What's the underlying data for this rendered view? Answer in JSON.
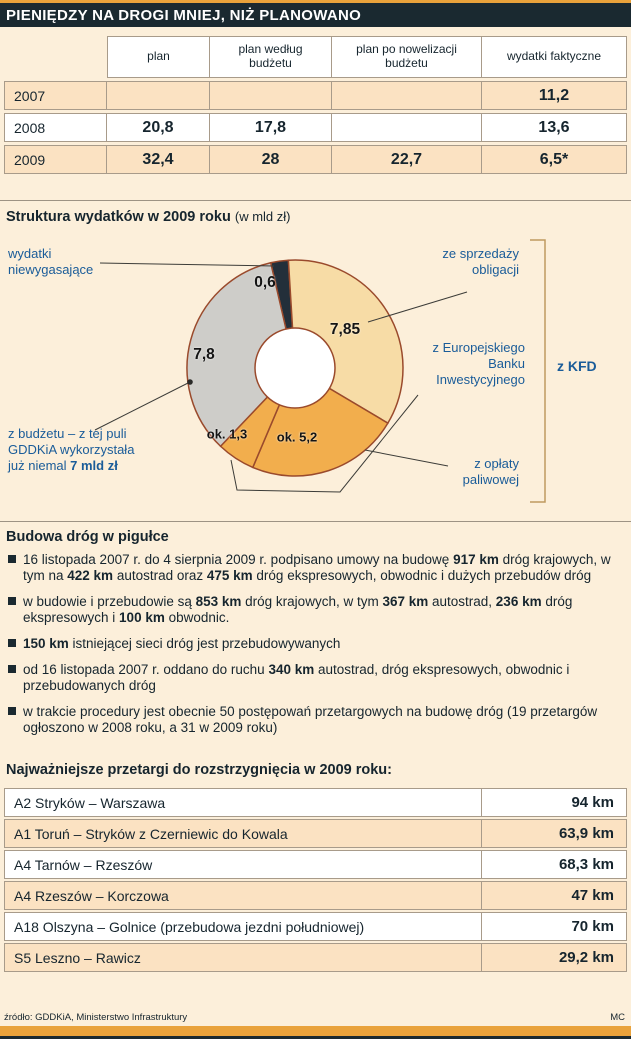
{
  "header": {
    "title": "PIENIĘDZY NA DROGI MNIEJ, NIŻ PLANOWANO"
  },
  "colors": {
    "accent_orange": "#e9a23b",
    "header_dark": "#1a2930",
    "label_blue": "#1a5c99",
    "row_peach": "#fbe2c2",
    "pie_outline": "#9a4a2c"
  },
  "chart_data": [
    {
      "type": "table",
      "title": "",
      "columns": [
        "",
        "plan",
        "plan według budżetu",
        "plan po nowelizacji budżetu",
        "wydatki faktyczne"
      ],
      "rows": [
        [
          "2007",
          "",
          "",
          "",
          "11,2"
        ],
        [
          "2008",
          "20,8",
          "17,8",
          "",
          "13,6"
        ],
        [
          "2009",
          "32,4",
          "28",
          "22,7",
          "6,5*"
        ]
      ]
    },
    {
      "type": "pie",
      "title": "Struktura wydatków w 2009 roku",
      "unit_note": "(w mld zł)",
      "donut": true,
      "start_angle_deg": -13,
      "outline_color": "#9a4a2c",
      "segments": [
        {
          "label": "wydatki niewygasające",
          "value": 0.6,
          "value_label": "0,6",
          "color": "#232f3a"
        },
        {
          "label": "ze sprzedaży obligacji",
          "value": 7.85,
          "value_label": "7,85",
          "color": "#f7dca6"
        },
        {
          "label": "z opłaty paliwowej",
          "value": 5.2,
          "value_label": "ok. 5,2",
          "color": "#f2ae4d"
        },
        {
          "label": "z Europejskiego Banku Inwestycyjnego",
          "value": 1.3,
          "value_label": "ok. 1,3",
          "color": "#f2ae4d"
        },
        {
          "label": "z budżetu",
          "value": 7.8,
          "value_label": "7,8",
          "color": "#cecdc9"
        }
      ],
      "callouts": {
        "left_top": "wydatki\nniewygasające",
        "right_top": "ze sprzedaży\nobligacji",
        "right_mid": "z Europejskiego\nBanku\nInwestycyjnego",
        "right_bottom": "z opłaty\npaliwowej",
        "left_bottom": "z budżetu – z tej puli\nGDDKiA wykorzystała\njuż niemal **7 mld zł**"
      },
      "group": {
        "label": "z KFD",
        "members": [
          "ze sprzedaży obligacji",
          "z Europejskiego Banku Inwestycyjnego",
          "z opłaty paliwowej"
        ]
      }
    },
    {
      "type": "table",
      "title": "Najważniejsze przetargi do rozstrzygnięcia w 2009 roku:",
      "rows": [
        [
          "A2 Stryków – Warszawa",
          "94 km"
        ],
        [
          "A1 Toruń – Stryków z Czerniewic do Kowala",
          "63,9 km"
        ],
        [
          "A4 Tarnów – Rzeszów",
          "68,3 km"
        ],
        [
          "A4 Rzeszów – Korczowa",
          "47 km"
        ],
        [
          "A18 Olszyna – Golnice (przebudowa jezdni południowej)",
          "70 km"
        ],
        [
          "S5 Leszno – Rawicz",
          "29,2 km"
        ]
      ]
    }
  ],
  "facts": {
    "title": "Budowa dróg w pigułce",
    "items": [
      "16 listopada 2007 r. do 4 sierpnia 2009 r. podpisano umowy na budowę **917 km** dróg krajowych, w tym na **422 km** autostrad oraz **475 km** dróg ekspresowych, obwodnic i dużych przebudów dróg",
      "w budowie i przebudowie są **853 km** dróg krajowych, w tym **367 km** autostrad, **236 km** dróg ekspresowych i **100 km** obwodnic.",
      "**150 km** istniejącej sieci dróg jest przebudowywanych",
      "od 16 listopada 2007 r. oddano do ruchu **340 km** autostrad, dróg ekspresowych, obwodnic i przebudowanych dróg",
      "w trakcie procedury jest obecnie 50 postępowań przetargowych na budowę dróg (19 przetargów ogłoszono w 2008 roku, a 31 w 2009 roku)"
    ]
  },
  "footer": {
    "source": "źródło: GDDKiA, Ministerstwo Infrastruktury",
    "credit": "MC"
  }
}
